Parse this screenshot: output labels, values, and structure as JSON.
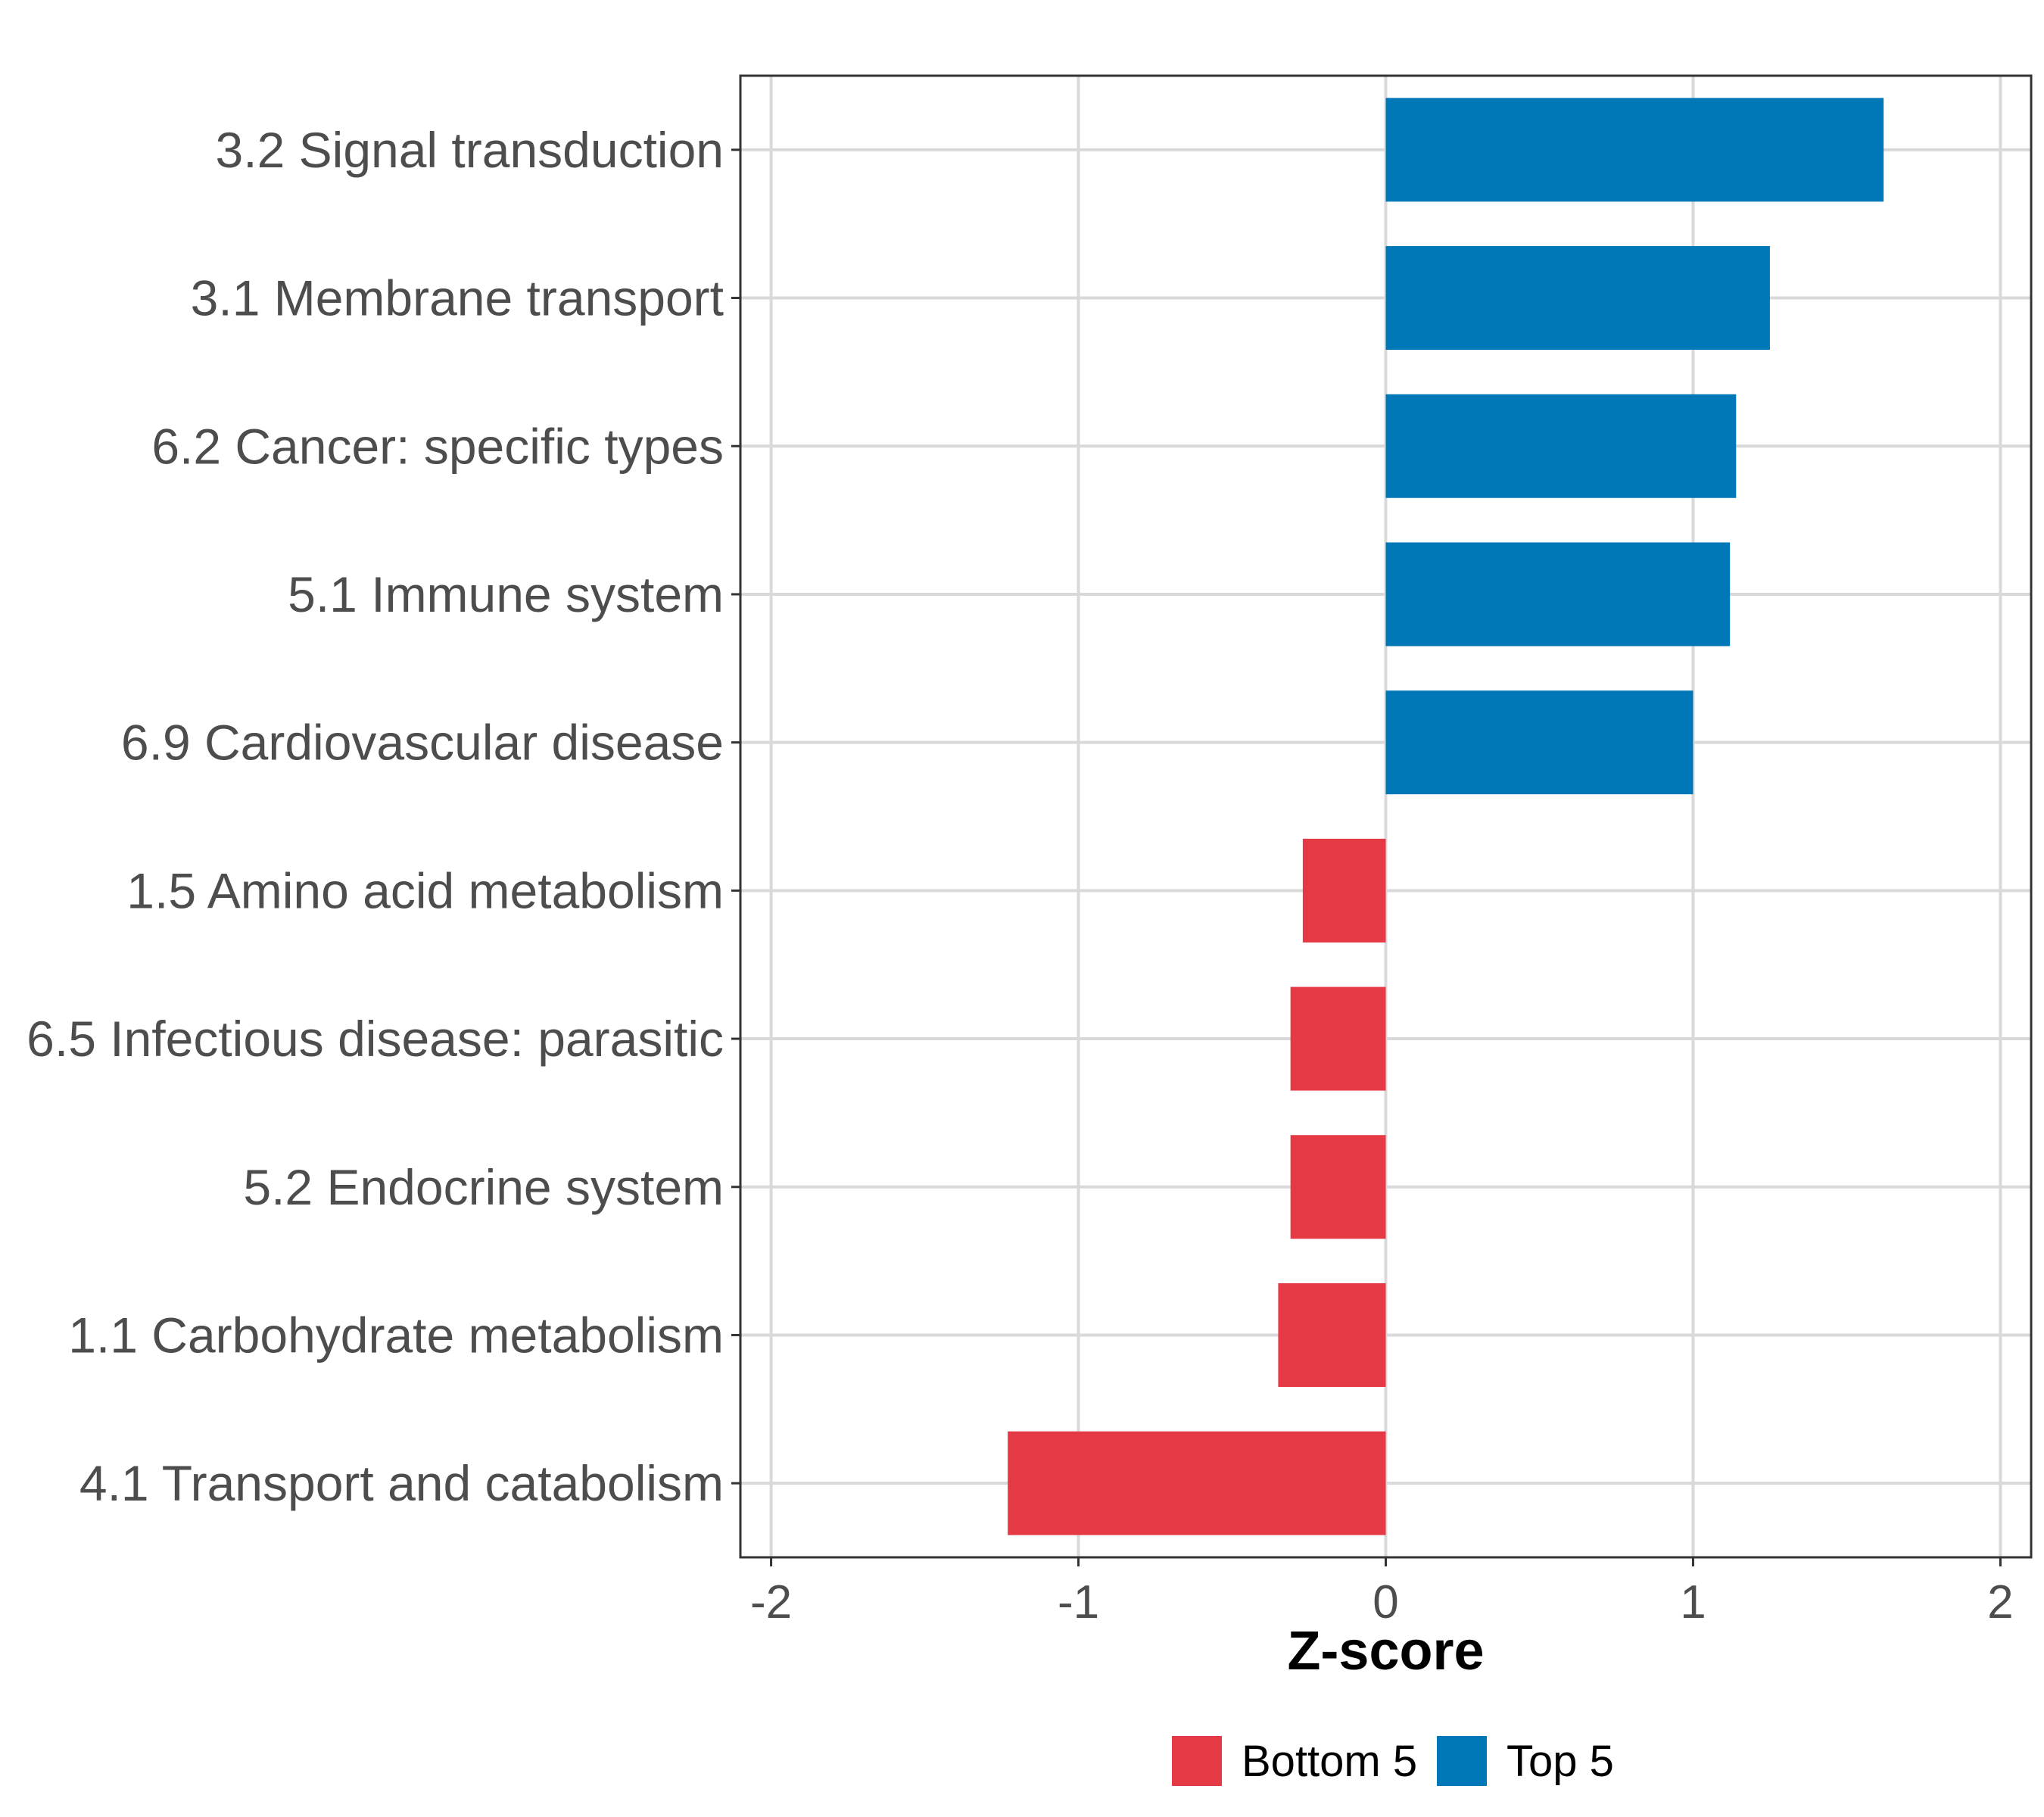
{
  "chart_data": {
    "type": "bar",
    "orientation": "horizontal",
    "categories": [
      "3.2 Signal transduction",
      "3.1 Membrane transport",
      "6.2 Cancer: specific types",
      "5.1 Immune system",
      "6.9 Cardiovascular disease",
      "1.5 Amino acid metabolism",
      "6.5 Infectious disease: parasitic",
      "5.2 Endocrine system",
      "1.1 Carbohydrate metabolism",
      "4.1 Transport and catabolism"
    ],
    "values": [
      1.62,
      1.25,
      1.14,
      1.12,
      1.0,
      -0.27,
      -0.31,
      -0.31,
      -0.35,
      -1.23
    ],
    "groups": [
      "Top 5",
      "Top 5",
      "Top 5",
      "Top 5",
      "Top 5",
      "Bottom 5",
      "Bottom 5",
      "Bottom 5",
      "Bottom 5",
      "Bottom 5"
    ],
    "xlabel": "Z-score",
    "ylabel": "",
    "xlim": [
      -2.1,
      2.1
    ],
    "xticks": [
      -2,
      -1,
      0,
      1,
      2
    ],
    "xtick_labels": [
      "-2",
      "-1",
      "0",
      "1",
      "2"
    ],
    "grid": true,
    "legend": {
      "position": "bottom",
      "entries": [
        {
          "label": "Bottom 5",
          "color": "#e63946"
        },
        {
          "label": "Top 5",
          "color": "#0077b6"
        }
      ]
    },
    "colors": {
      "Top 5": "#0077b6",
      "Bottom 5": "#e63946"
    }
  }
}
